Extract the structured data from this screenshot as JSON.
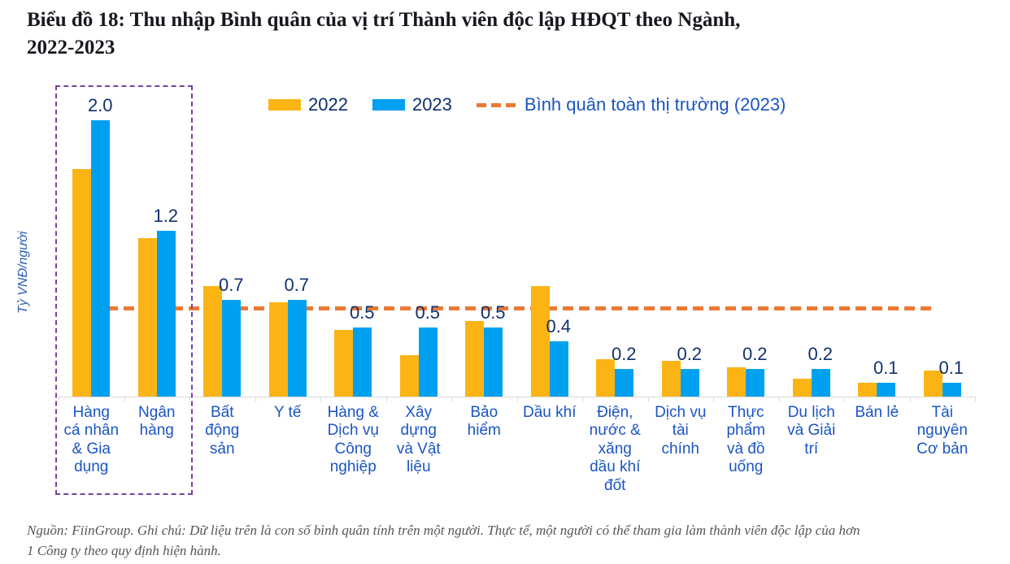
{
  "title": {
    "line1": "Biểu đồ 18: Thu nhập Bình quân của vị trí Thành viên độc lập HĐQT theo Ngành,",
    "line2": "2022-2023"
  },
  "footer": {
    "line1": "Nguồn: FiinGroup. Ghi chú: Dữ liệu trên là con số bình quân tính trên một người. Thực tế, một người có thể tham gia làm thành viên độc lập của hơn",
    "line2": "1 Công ty theo quy định hiện hành."
  },
  "colors": {
    "bar_2022": "#FCB414",
    "bar_2023": "#00A0F0",
    "average_line": "#EA7A36",
    "highlight_box": "#7B3FA3",
    "value_label": "#12316E",
    "axis_label": "#1B55C4",
    "legend_year_label": "#0E2F6D"
  },
  "chart_data": {
    "type": "bar",
    "title": "Biểu đồ 18: Thu nhập Bình quân của vị trí Thành viên độc lập HĐQT theo Ngành, 2022-2023",
    "ylabel": "Tỷ VNĐ/người",
    "grid": false,
    "legend_position": "top",
    "ylim": [
      0,
      2.28
    ],
    "categories": [
      "Hàng cá nhân & Gia dụng",
      "Ngân hàng",
      "Bất động sản",
      "Y tế",
      "Hàng & Dịch vụ Công nghiệp",
      "Xây dựng và Vật liệu",
      "Bảo hiểm",
      "Dầu khí",
      "Điện, nước & xăng dầu khí đốt",
      "Dịch vụ tài chính",
      "Thực phẩm và đồ uống",
      "Du lịch và Giải trí",
      "Bán lẻ",
      "Tài nguyên Cơ bản"
    ],
    "tick_labels": [
      "Hàng\ncá nhân\n& Gia\ndụng",
      "Ngân\nhàng",
      "Bất\nđộng\nsản",
      "Y tế",
      "Hàng &\nDịch vụ\nCông\nnghiệp",
      "Xây\ndựng\nvà Vật\nliệu",
      "Bảo\nhiểm",
      "Dầu khí",
      "Điện,\nnước &\nxăng\ndầu khí\nđốt",
      "Dịch vụ\ntài\nchính",
      "Thực\nphẩm\nvà đồ\nuống",
      "Du lịch\nvà Giải\ntrí",
      "Bán lẻ",
      "Tài\nnguyên\nCơ bản"
    ],
    "series": [
      {
        "name": "2022",
        "color": "#FCB414",
        "values_estimated_from_chart": true,
        "values": [
          1.65,
          1.15,
          0.8,
          0.68,
          0.48,
          0.3,
          0.55,
          0.8,
          0.27,
          0.26,
          0.21,
          0.13,
          0.1,
          0.19
        ]
      },
      {
        "name": "2023",
        "color": "#00A0F0",
        "values": [
          2.0,
          1.2,
          0.7,
          0.7,
          0.5,
          0.5,
          0.5,
          0.4,
          0.2,
          0.2,
          0.2,
          0.2,
          0.1,
          0.1
        ],
        "data_labels": [
          "2.0",
          "1.2",
          "0.7",
          "0.7",
          "0.5",
          "0.5",
          "0.5",
          "0.4",
          "0.2",
          "0.2",
          "0.2",
          "0.2",
          "0.1",
          "0.1"
        ]
      }
    ],
    "average_line": {
      "label": "Bình quân toàn thị trường (2023)",
      "value": 0.64,
      "style": "dashed",
      "color": "#EA7A36"
    },
    "highlight_box": {
      "categories": [
        "Hàng cá nhân & Gia dụng",
        "Ngân hàng"
      ],
      "style": "dashed",
      "color": "#7B3FA3"
    }
  }
}
